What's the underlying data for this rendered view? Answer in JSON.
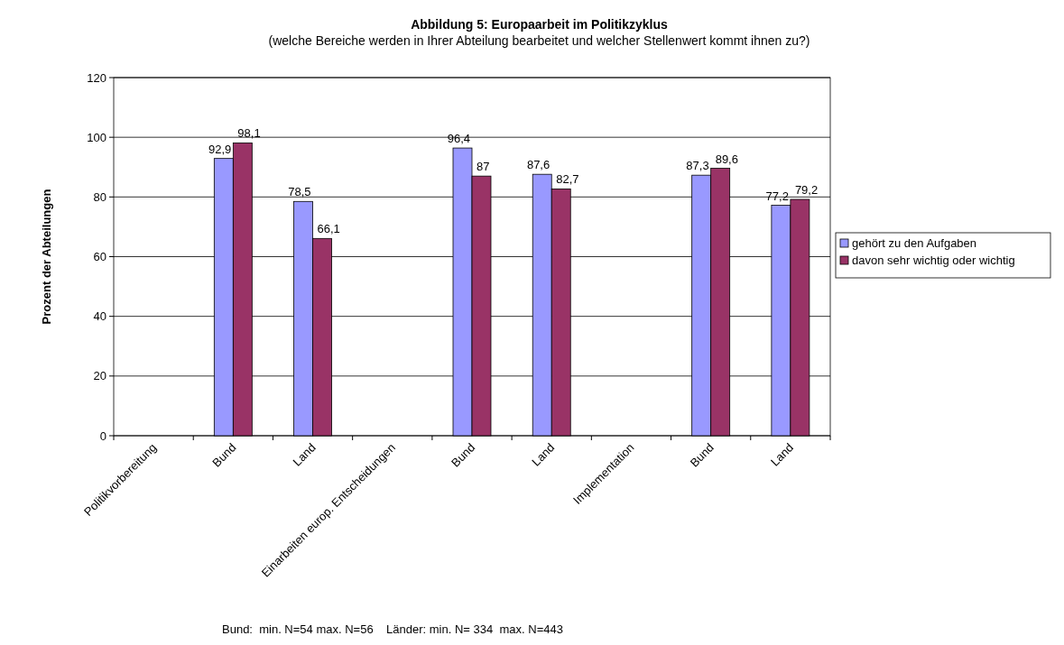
{
  "chart_data": {
    "type": "bar",
    "title": "Abbildung 5: Europaarbeit im Politikzyklus",
    "subtitle": "(welche Bereiche werden in Ihrer Abteilung bearbeitet und welcher Stellenwert kommt ihnen zu?)",
    "ylabel": "Prozent der Abteilungen",
    "categories": [
      "Politikvorbereitung",
      "Bund",
      "Land",
      "Einarbeiten europ. Entscheidungen",
      "Bund",
      "Land",
      "Implementation",
      "Bund",
      "Land"
    ],
    "series": [
      {
        "name": "gehört zu den Aufgaben",
        "color": "#9999ff",
        "values": [
          null,
          92.9,
          78.5,
          null,
          96.4,
          87.6,
          null,
          87.3,
          77.2
        ],
        "value_labels": [
          null,
          "92,9",
          "78,5",
          null,
          "96,4",
          "87,6",
          null,
          "87,3",
          "77,2"
        ]
      },
      {
        "name": "davon sehr wichtig oder wichtig",
        "color": "#993366",
        "values": [
          null,
          98.1,
          66.1,
          null,
          87,
          82.7,
          null,
          89.6,
          79.2
        ],
        "value_labels": [
          null,
          "98,1",
          "66,1",
          null,
          "87",
          "82,7",
          null,
          "89,6",
          "79,2"
        ]
      }
    ],
    "ylim": [
      0,
      120
    ],
    "yticks": [
      0,
      20,
      40,
      60,
      80,
      100,
      120
    ],
    "grid": "y",
    "legend": "right",
    "annotations": [
      "Bund:  min. N=54 max. N=56    Länder: min. N= 334  max. N=443"
    ]
  }
}
